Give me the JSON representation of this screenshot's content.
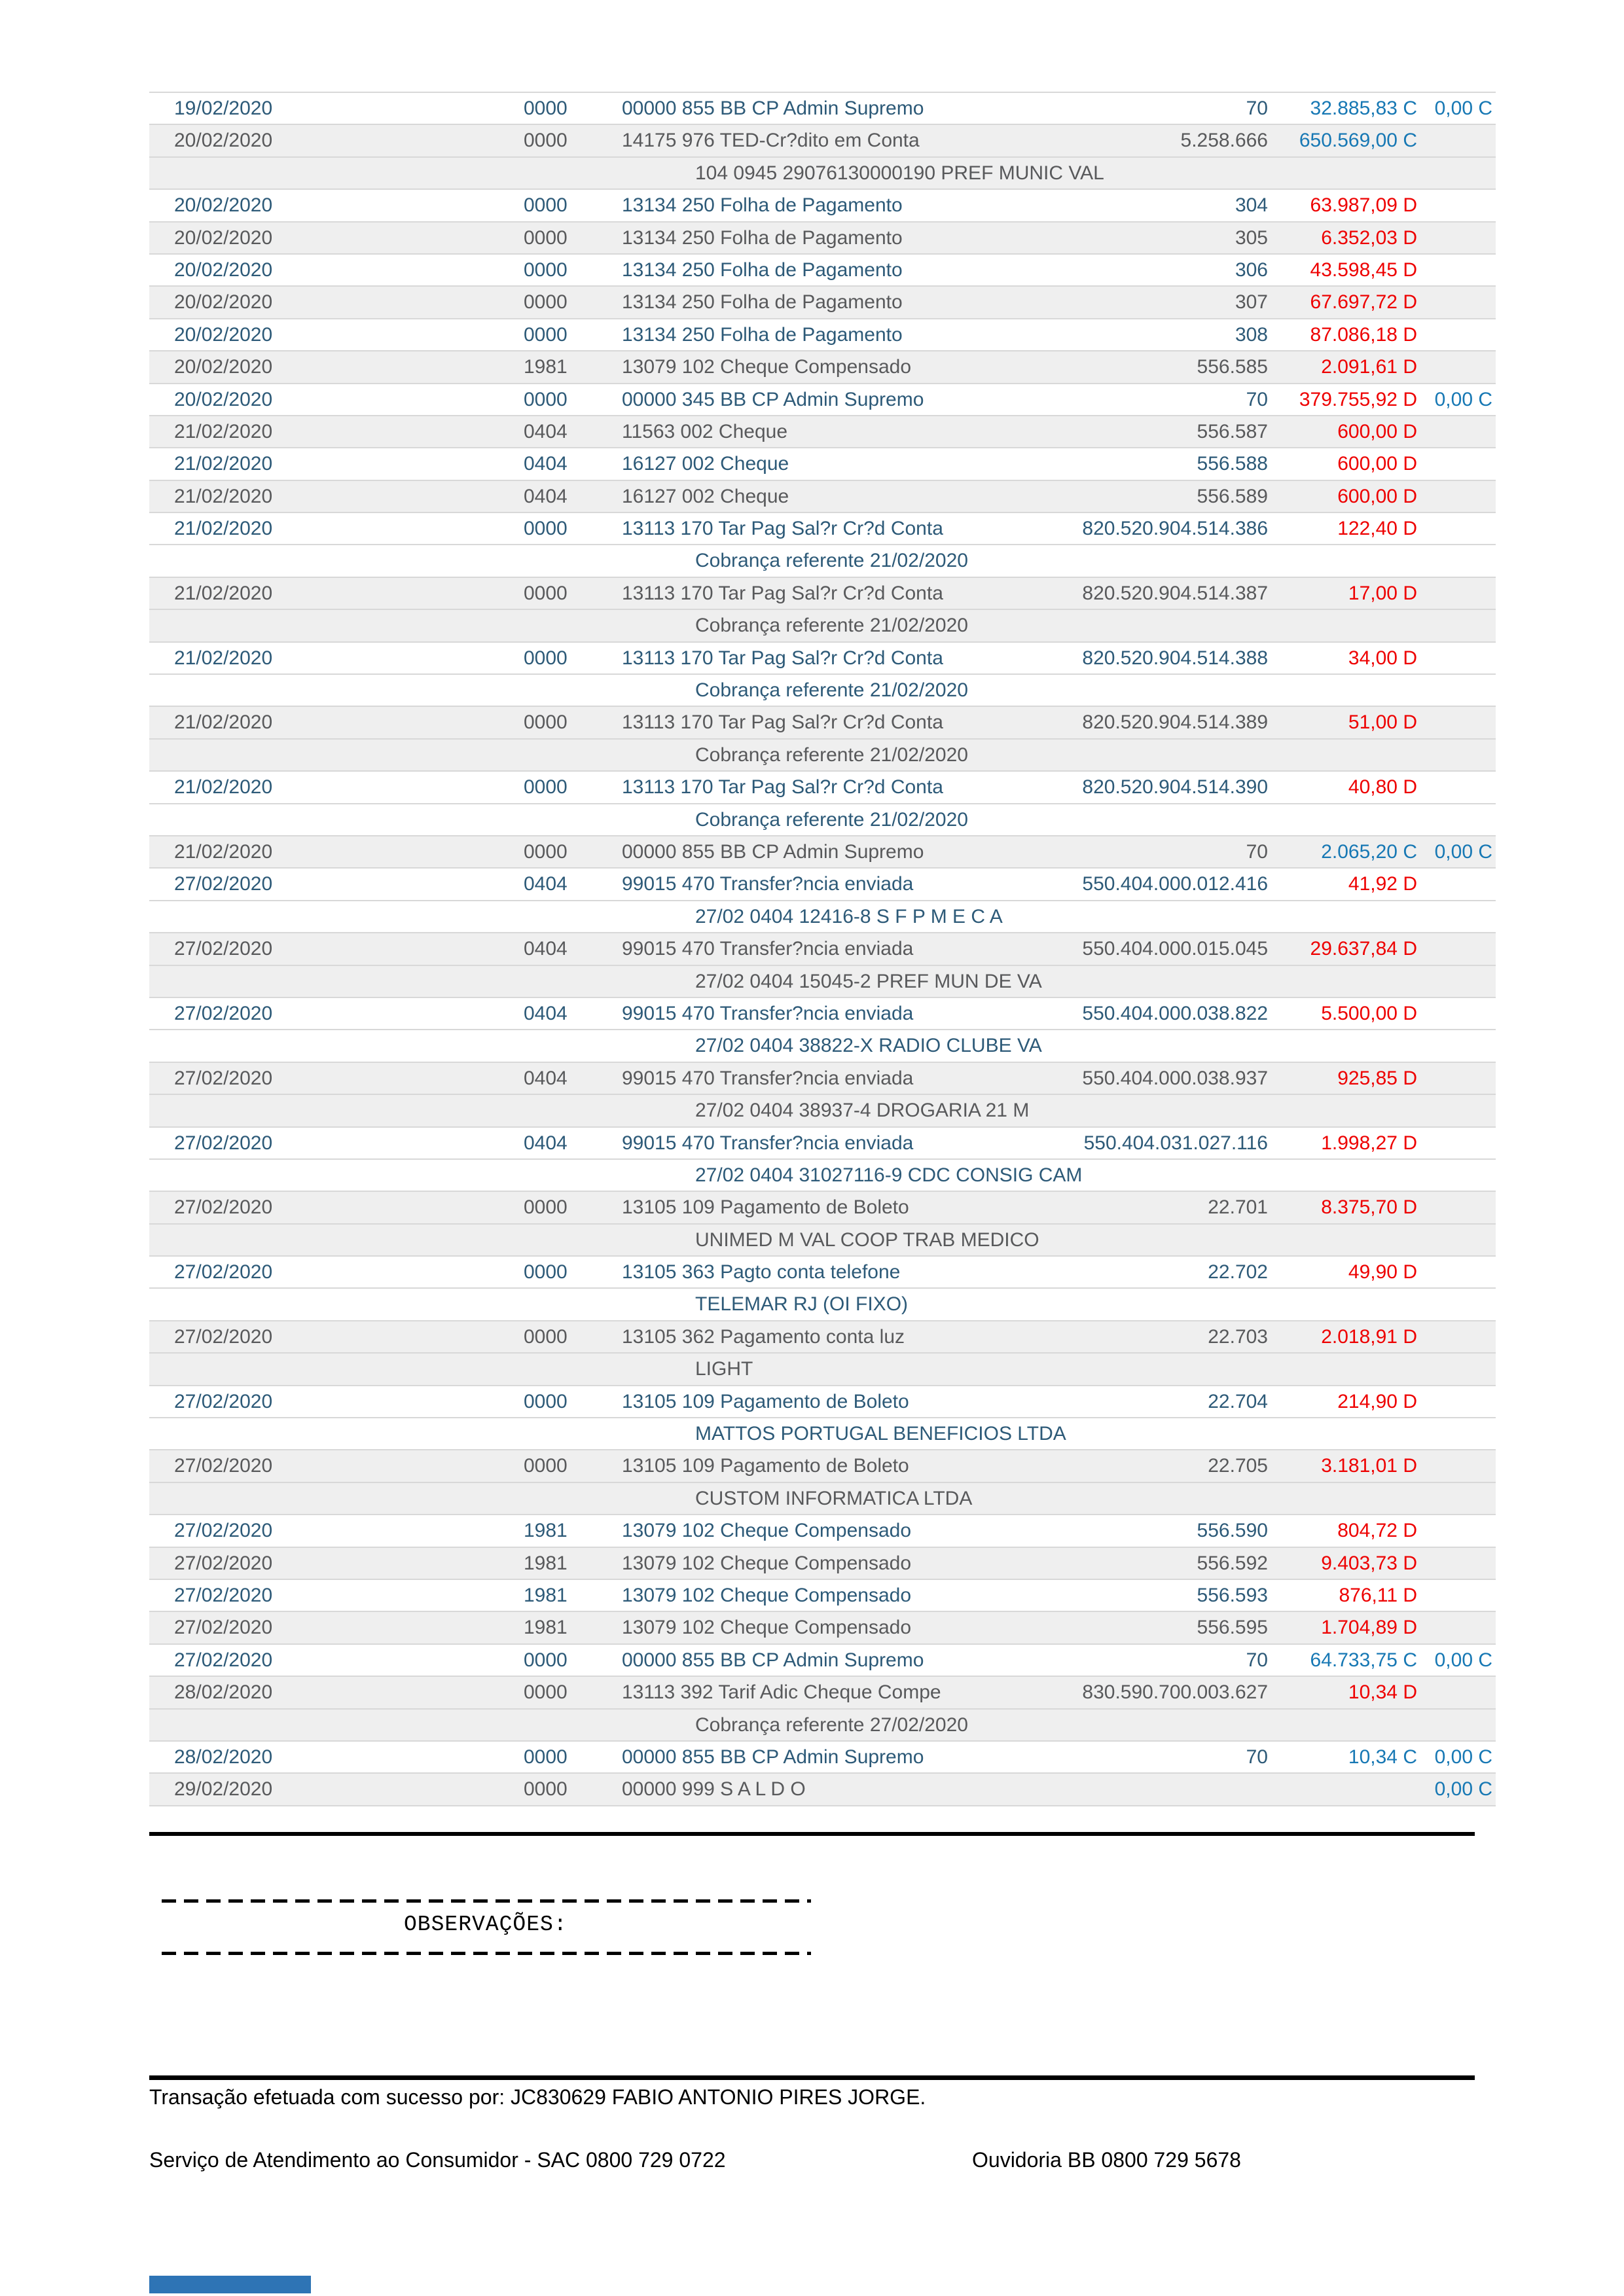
{
  "colors": {
    "row_text_odd": "#2d5a78",
    "row_text_even": "#58595b",
    "row_alt_bg": "#efefef",
    "separator": "#d8d8d8",
    "debit": "#ee0000",
    "credit": "#1778b4",
    "rule": "#000000",
    "accent_bar": "#2e74b5"
  },
  "table": {
    "lines": [
      {
        "t": "main",
        "alt": false,
        "date": "19/02/2020",
        "branch": "0000",
        "desc": "00000 855 BB CP Admin Supremo",
        "doc": "70",
        "val": "32.885,83 C",
        "vc": "credit",
        "bal": "0,00 C"
      },
      {
        "t": "main",
        "alt": true,
        "date": "20/02/2020",
        "branch": "0000",
        "desc": "14175 976 TED-Cr?dito em Conta",
        "doc": "5.258.666",
        "val": "650.569,00 C",
        "vc": "credit",
        "bal": ""
      },
      {
        "t": "cont",
        "alt": true,
        "text": "104 0945 29076130000190 PREF MUNIC VAL"
      },
      {
        "t": "main",
        "alt": false,
        "date": "20/02/2020",
        "branch": "0000",
        "desc": "13134 250 Folha de Pagamento",
        "doc": "304",
        "val": "63.987,09 D",
        "vc": "debit",
        "bal": ""
      },
      {
        "t": "main",
        "alt": true,
        "date": "20/02/2020",
        "branch": "0000",
        "desc": "13134 250 Folha de Pagamento",
        "doc": "305",
        "val": "6.352,03 D",
        "vc": "debit",
        "bal": ""
      },
      {
        "t": "main",
        "alt": false,
        "date": "20/02/2020",
        "branch": "0000",
        "desc": "13134 250 Folha de Pagamento",
        "doc": "306",
        "val": "43.598,45 D",
        "vc": "debit",
        "bal": ""
      },
      {
        "t": "main",
        "alt": true,
        "date": "20/02/2020",
        "branch": "0000",
        "desc": "13134 250 Folha de Pagamento",
        "doc": "307",
        "val": "67.697,72 D",
        "vc": "debit",
        "bal": ""
      },
      {
        "t": "main",
        "alt": false,
        "date": "20/02/2020",
        "branch": "0000",
        "desc": "13134 250 Folha de Pagamento",
        "doc": "308",
        "val": "87.086,18 D",
        "vc": "debit",
        "bal": ""
      },
      {
        "t": "main",
        "alt": true,
        "date": "20/02/2020",
        "branch": "1981",
        "desc": "13079 102 Cheque Compensado",
        "doc": "556.585",
        "val": "2.091,61 D",
        "vc": "debit",
        "bal": ""
      },
      {
        "t": "main",
        "alt": false,
        "date": "20/02/2020",
        "branch": "0000",
        "desc": "00000 345 BB CP Admin Supremo",
        "doc": "70",
        "val": "379.755,92 D",
        "vc": "debit",
        "bal": "0,00 C"
      },
      {
        "t": "main",
        "alt": true,
        "date": "21/02/2020",
        "branch": "0404",
        "desc": "11563 002 Cheque",
        "doc": "556.587",
        "val": "600,00 D",
        "vc": "debit",
        "bal": ""
      },
      {
        "t": "main",
        "alt": false,
        "date": "21/02/2020",
        "branch": "0404",
        "desc": "16127 002 Cheque",
        "doc": "556.588",
        "val": "600,00 D",
        "vc": "debit",
        "bal": ""
      },
      {
        "t": "main",
        "alt": true,
        "date": "21/02/2020",
        "branch": "0404",
        "desc": "16127 002 Cheque",
        "doc": "556.589",
        "val": "600,00 D",
        "vc": "debit",
        "bal": ""
      },
      {
        "t": "main",
        "alt": false,
        "date": "21/02/2020",
        "branch": "0000",
        "desc": "13113 170 Tar Pag Sal?r Cr?d Conta",
        "doc": "820.520.904.514.386",
        "val": "122,40 D",
        "vc": "debit",
        "bal": ""
      },
      {
        "t": "cont",
        "alt": false,
        "text": "Cobrança referente 21/02/2020"
      },
      {
        "t": "main",
        "alt": true,
        "date": "21/02/2020",
        "branch": "0000",
        "desc": "13113 170 Tar Pag Sal?r Cr?d Conta",
        "doc": "820.520.904.514.387",
        "val": "17,00 D",
        "vc": "debit",
        "bal": ""
      },
      {
        "t": "cont",
        "alt": true,
        "text": "Cobrança referente 21/02/2020"
      },
      {
        "t": "main",
        "alt": false,
        "date": "21/02/2020",
        "branch": "0000",
        "desc": "13113 170 Tar Pag Sal?r Cr?d Conta",
        "doc": "820.520.904.514.388",
        "val": "34,00 D",
        "vc": "debit",
        "bal": ""
      },
      {
        "t": "cont",
        "alt": false,
        "text": "Cobrança referente 21/02/2020"
      },
      {
        "t": "main",
        "alt": true,
        "date": "21/02/2020",
        "branch": "0000",
        "desc": "13113 170 Tar Pag Sal?r Cr?d Conta",
        "doc": "820.520.904.514.389",
        "val": "51,00 D",
        "vc": "debit",
        "bal": ""
      },
      {
        "t": "cont",
        "alt": true,
        "text": "Cobrança referente 21/02/2020"
      },
      {
        "t": "main",
        "alt": false,
        "date": "21/02/2020",
        "branch": "0000",
        "desc": "13113 170 Tar Pag Sal?r Cr?d Conta",
        "doc": "820.520.904.514.390",
        "val": "40,80 D",
        "vc": "debit",
        "bal": ""
      },
      {
        "t": "cont",
        "alt": false,
        "text": "Cobrança referente 21/02/2020"
      },
      {
        "t": "main",
        "alt": true,
        "date": "21/02/2020",
        "branch": "0000",
        "desc": "00000 855 BB CP Admin Supremo",
        "doc": "70",
        "val": "2.065,20 C",
        "vc": "credit",
        "bal": "0,00 C"
      },
      {
        "t": "main",
        "alt": false,
        "date": "27/02/2020",
        "branch": "0404",
        "desc": "99015 470 Transfer?ncia enviada",
        "doc": "550.404.000.012.416",
        "val": "41,92 D",
        "vc": "debit",
        "bal": ""
      },
      {
        "t": "cont",
        "alt": false,
        "text": "27/02 0404 12416-8 S F P M E C A"
      },
      {
        "t": "main",
        "alt": true,
        "date": "27/02/2020",
        "branch": "0404",
        "desc": "99015 470 Transfer?ncia enviada",
        "doc": "550.404.000.015.045",
        "val": "29.637,84 D",
        "vc": "debit",
        "bal": ""
      },
      {
        "t": "cont",
        "alt": true,
        "text": "27/02 0404 15045-2 PREF MUN DE VA"
      },
      {
        "t": "main",
        "alt": false,
        "date": "27/02/2020",
        "branch": "0404",
        "desc": "99015 470 Transfer?ncia enviada",
        "doc": "550.404.000.038.822",
        "val": "5.500,00 D",
        "vc": "debit",
        "bal": ""
      },
      {
        "t": "cont",
        "alt": false,
        "text": "27/02 0404 38822-X RADIO CLUBE VA"
      },
      {
        "t": "main",
        "alt": true,
        "date": "27/02/2020",
        "branch": "0404",
        "desc": "99015 470 Transfer?ncia enviada",
        "doc": "550.404.000.038.937",
        "val": "925,85 D",
        "vc": "debit",
        "bal": ""
      },
      {
        "t": "cont",
        "alt": true,
        "text": "27/02 0404 38937-4 DROGARIA 21 M"
      },
      {
        "t": "main",
        "alt": false,
        "date": "27/02/2020",
        "branch": "0404",
        "desc": "99015 470 Transfer?ncia enviada",
        "doc": "550.404.031.027.116",
        "val": "1.998,27 D",
        "vc": "debit",
        "bal": ""
      },
      {
        "t": "cont",
        "alt": false,
        "text": "27/02 0404 31027116-9 CDC CONSIG CAM"
      },
      {
        "t": "main",
        "alt": true,
        "date": "27/02/2020",
        "branch": "0000",
        "desc": "13105 109 Pagamento de Boleto",
        "doc": "22.701",
        "val": "8.375,70 D",
        "vc": "debit",
        "bal": ""
      },
      {
        "t": "cont",
        "alt": true,
        "text": "UNIMED M VAL COOP TRAB MEDICO"
      },
      {
        "t": "main",
        "alt": false,
        "date": "27/02/2020",
        "branch": "0000",
        "desc": "13105 363 Pagto conta telefone",
        "doc": "22.702",
        "val": "49,90 D",
        "vc": "debit",
        "bal": ""
      },
      {
        "t": "cont",
        "alt": false,
        "text": "TELEMAR RJ (OI FIXO)"
      },
      {
        "t": "main",
        "alt": true,
        "date": "27/02/2020",
        "branch": "0000",
        "desc": "13105 362 Pagamento conta luz",
        "doc": "22.703",
        "val": "2.018,91 D",
        "vc": "debit",
        "bal": ""
      },
      {
        "t": "cont",
        "alt": true,
        "text": "LIGHT"
      },
      {
        "t": "main",
        "alt": false,
        "date": "27/02/2020",
        "branch": "0000",
        "desc": "13105 109 Pagamento de Boleto",
        "doc": "22.704",
        "val": "214,90 D",
        "vc": "debit",
        "bal": ""
      },
      {
        "t": "cont",
        "alt": false,
        "text": "MATTOS PORTUGAL BENEFICIOS LTDA"
      },
      {
        "t": "main",
        "alt": true,
        "date": "27/02/2020",
        "branch": "0000",
        "desc": "13105 109 Pagamento de Boleto",
        "doc": "22.705",
        "val": "3.181,01 D",
        "vc": "debit",
        "bal": ""
      },
      {
        "t": "cont",
        "alt": true,
        "text": "CUSTOM INFORMATICA LTDA"
      },
      {
        "t": "main",
        "alt": false,
        "date": "27/02/2020",
        "branch": "1981",
        "desc": "13079 102 Cheque Compensado",
        "doc": "556.590",
        "val": "804,72 D",
        "vc": "debit",
        "bal": ""
      },
      {
        "t": "main",
        "alt": true,
        "date": "27/02/2020",
        "branch": "1981",
        "desc": "13079 102 Cheque Compensado",
        "doc": "556.592",
        "val": "9.403,73 D",
        "vc": "debit",
        "bal": ""
      },
      {
        "t": "main",
        "alt": false,
        "date": "27/02/2020",
        "branch": "1981",
        "desc": "13079 102 Cheque Compensado",
        "doc": "556.593",
        "val": "876,11 D",
        "vc": "debit",
        "bal": ""
      },
      {
        "t": "main",
        "alt": true,
        "date": "27/02/2020",
        "branch": "1981",
        "desc": "13079 102 Cheque Compensado",
        "doc": "556.595",
        "val": "1.704,89 D",
        "vc": "debit",
        "bal": ""
      },
      {
        "t": "main",
        "alt": false,
        "date": "27/02/2020",
        "branch": "0000",
        "desc": "00000 855 BB CP Admin Supremo",
        "doc": "70",
        "val": "64.733,75 C",
        "vc": "credit",
        "bal": "0,00 C"
      },
      {
        "t": "main",
        "alt": true,
        "date": "28/02/2020",
        "branch": "0000",
        "desc": "13113 392 Tarif Adic Cheque Compe",
        "doc": "830.590.700.003.627",
        "val": "10,34 D",
        "vc": "debit",
        "bal": ""
      },
      {
        "t": "cont",
        "alt": true,
        "text": "Cobrança referente 27/02/2020"
      },
      {
        "t": "main",
        "alt": false,
        "date": "28/02/2020",
        "branch": "0000",
        "desc": "00000 855 BB CP Admin Supremo",
        "doc": "70",
        "val": "10,34 C",
        "vc": "credit",
        "bal": "0,00 C"
      },
      {
        "t": "main",
        "alt": true,
        "date": "29/02/2020",
        "branch": "0000",
        "desc": "00000 999 S A L D O",
        "doc": "",
        "val": "",
        "vc": "",
        "bal": "0,00 C"
      }
    ]
  },
  "observations": {
    "label": "OBSERVAÇÕES:"
  },
  "footer": {
    "transaction_note": "Transação efetuada com sucesso por: JC830629 FABIO ANTONIO PIRES JORGE.",
    "sac": "Serviço de Atendimento ao Consumidor - SAC 0800 729 0722",
    "ouvidoria": "Ouvidoria BB 0800 729 5678"
  }
}
